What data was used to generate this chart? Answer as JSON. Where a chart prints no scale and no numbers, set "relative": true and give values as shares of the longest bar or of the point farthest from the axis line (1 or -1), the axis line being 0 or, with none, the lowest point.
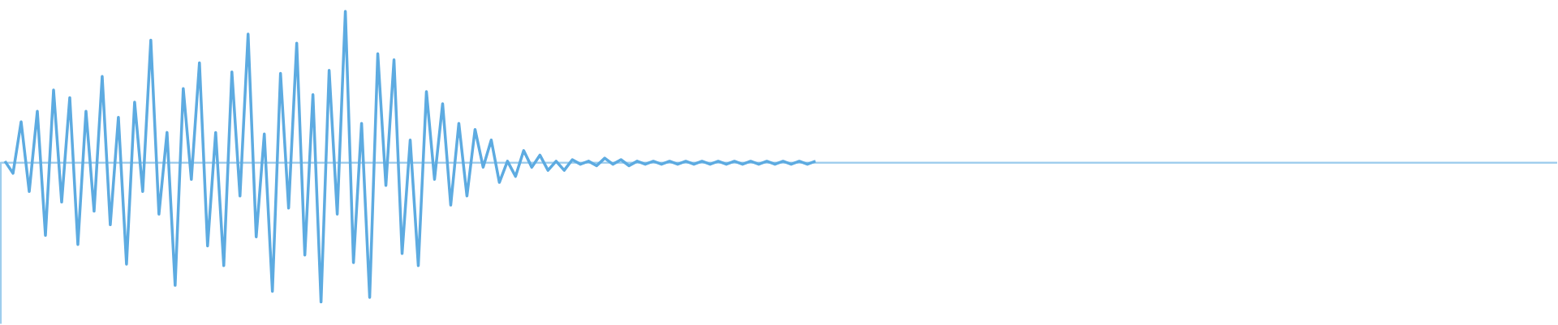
{
  "chart_data": {
    "type": "line",
    "relative": true,
    "color": "#5dabe1",
    "ref_lines": [
      {
        "axis": "y",
        "value": 0,
        "color": "#9ecded"
      }
    ],
    "categories": [
      null,
      null,
      null,
      null,
      null,
      null,
      null,
      null,
      null,
      null,
      null,
      null,
      null,
      null,
      null,
      null,
      null,
      null,
      null,
      null,
      null,
      null,
      null,
      null,
      null,
      null,
      null,
      null,
      null,
      null,
      null,
      null,
      null,
      null,
      null,
      null,
      null,
      null,
      null,
      null,
      null,
      null,
      null,
      null,
      null,
      null,
      null,
      null,
      null,
      null,
      null,
      null,
      null,
      null,
      null,
      null,
      null,
      null,
      null,
      null,
      null,
      null,
      null,
      null,
      null,
      null,
      null,
      null,
      null,
      null,
      null,
      null,
      null,
      null,
      null,
      null,
      null,
      null,
      null,
      null,
      null,
      null,
      null,
      null,
      null,
      null,
      null,
      null,
      null,
      null,
      null,
      null,
      null,
      null,
      null,
      null,
      null,
      null,
      null,
      null,
      null,
      null,
      null,
      null,
      null,
      null,
      null,
      null,
      null,
      null,
      null,
      null,
      null,
      null,
      null,
      null,
      null,
      null,
      null,
      null,
      null,
      null,
      null,
      null,
      null,
      null,
      null,
      null,
      null,
      null,
      null,
      null,
      null,
      null,
      null,
      null,
      null,
      null,
      null,
      null,
      null,
      null,
      null,
      null,
      null,
      null,
      null,
      null,
      null,
      null,
      null,
      null,
      null,
      null,
      null,
      null,
      null,
      null,
      null,
      null,
      null,
      null,
      null,
      null,
      null,
      null,
      null,
      null,
      null,
      null,
      null,
      null,
      null,
      null,
      null,
      null,
      null,
      null,
      null,
      null,
      null,
      null,
      null,
      null,
      null,
      null,
      null,
      null,
      null,
      null,
      null,
      null
    ],
    "values": [
      0.01,
      -0.07,
      0.27,
      -0.19,
      0.34,
      -0.48,
      0.48,
      -0.26,
      0.43,
      -0.54,
      0.34,
      -0.32,
      0.57,
      -0.41,
      0.3,
      -0.67,
      0.4,
      -0.19,
      0.81,
      -0.34,
      0.2,
      -0.81,
      0.49,
      -0.11,
      0.66,
      -0.55,
      0.2,
      -0.68,
      0.6,
      -0.22,
      0.85,
      -0.49,
      0.19,
      -0.85,
      0.59,
      -0.3,
      0.79,
      -0.61,
      0.45,
      -0.92,
      0.61,
      -0.34,
      1,
      -0.66,
      0.26,
      -0.89,
      0.72,
      -0.15,
      0.68,
      -0.6,
      0.15,
      -0.68,
      0.47,
      -0.11,
      0.39,
      -0.28,
      0.26,
      -0.22,
      0.22,
      -0.03,
      0.15,
      -0.13,
      0.01,
      -0.09,
      0.08,
      -0.03,
      0.05,
      -0.05,
      0.01,
      -0.05,
      0.02,
      -0.01,
      0.01,
      -0.02,
      0.03,
      -0.01,
      0.02,
      -0.02,
      0.01,
      -0.01,
      0.01,
      -0.01,
      0.01,
      -0.01,
      0.01,
      -0.01,
      0.01,
      -0.01,
      0.01,
      -0.01,
      0.01,
      -0.01,
      0.01,
      -0.01,
      0.01,
      -0.01,
      0.01,
      -0.01,
      0.01,
      -0.01,
      0.01,
      null,
      null,
      null,
      null,
      null,
      null,
      null,
      null,
      null,
      null,
      null,
      null,
      null,
      null,
      null,
      null,
      null,
      null,
      null,
      null,
      null,
      null,
      null,
      null,
      null,
      null,
      null,
      null,
      null,
      null,
      null,
      null,
      null,
      null,
      null,
      null,
      null,
      null,
      null,
      null,
      null,
      null,
      null,
      null,
      null,
      null,
      null,
      null,
      null,
      null,
      null,
      null,
      null,
      null,
      null,
      null,
      null,
      null,
      null,
      null,
      null,
      null,
      null,
      null,
      null,
      null,
      null,
      null,
      null,
      null,
      null,
      null,
      null,
      null,
      null,
      null,
      null,
      null,
      null,
      null,
      null,
      null,
      null,
      null,
      null,
      null,
      null,
      null,
      null,
      null,
      null
    ]
  }
}
